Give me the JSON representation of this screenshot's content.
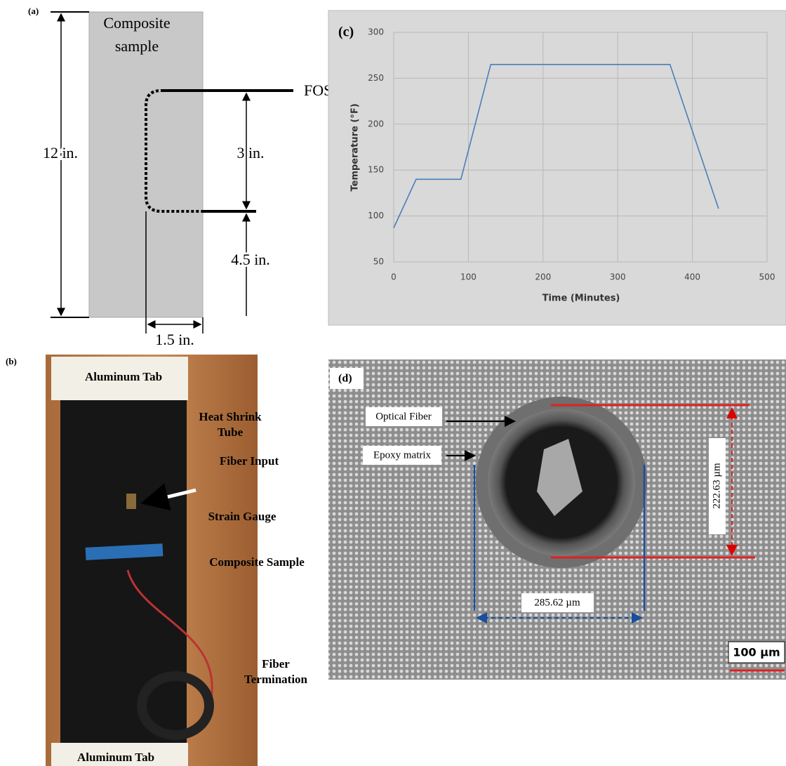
{
  "panel_a": {
    "label": "(a)",
    "sample": [
      "Composite",
      "sample"
    ],
    "fos": "FOS",
    "length": "12 in.",
    "gap": "3 in.",
    "bottom": "4.5 in.",
    "width": "1.5 in."
  },
  "chart_data": {
    "type": "line",
    "label": "(c)",
    "x": [
      0,
      30,
      90,
      130,
      370,
      435
    ],
    "values": [
      87,
      140,
      140,
      265,
      265,
      108
    ],
    "color": "#4a7ebb",
    "x_label": "Time (Minutes)",
    "y_label": "Temperature (°F)",
    "xlim": [
      0,
      500
    ],
    "ylim": [
      50,
      300
    ],
    "xticks": [
      0,
      100,
      200,
      300,
      400,
      500
    ],
    "yticks": [
      50,
      100,
      150,
      200,
      250,
      300
    ],
    "grid": true
  },
  "panel_b": {
    "label": "(b)",
    "top_tab": "Aluminum Tab",
    "heat_shrink": [
      "Heat Shrink",
      "Tube"
    ],
    "fiber_input": "Fiber Input",
    "strain_gauge": "Strain Gauge",
    "composite": "Composite Sample",
    "termination": [
      "Fiber",
      "Termination"
    ],
    "bottom_tab": "Aluminum Tab"
  },
  "panel_d": {
    "label": "(d)",
    "optical_fiber": "Optical Fiber",
    "epoxy": "Epoxy matrix",
    "height": "222.63 µm",
    "width": "285.62 µm",
    "scale": "100 µm"
  }
}
